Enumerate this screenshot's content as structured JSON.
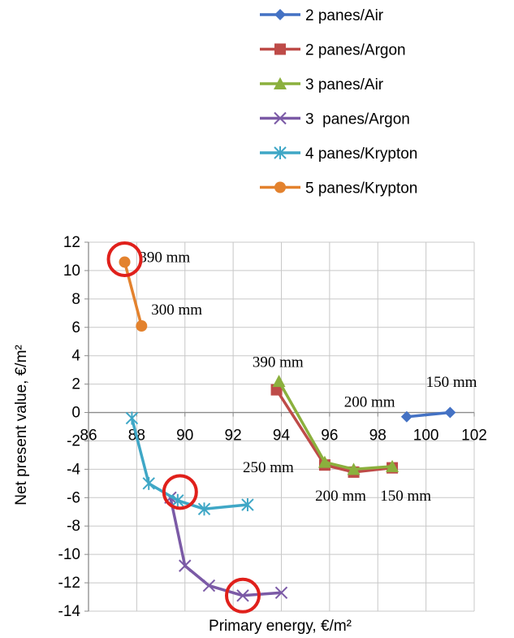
{
  "chart_data": {
    "type": "line",
    "xlabel": "Primary energy, €/m²",
    "ylabel": "Net present value, €/m²",
    "xlim": [
      86,
      102
    ],
    "ylim": [
      -14,
      12
    ],
    "x_ticks": [
      "86",
      "88",
      "90",
      "92",
      "94",
      "96",
      "98",
      "100",
      "102"
    ],
    "y_ticks": [
      "12",
      "10",
      "8",
      "6",
      "4",
      "2",
      "0",
      "-2",
      "-4",
      "-6",
      "-8",
      "-10",
      "-12",
      "-14"
    ],
    "grid": true,
    "legend_position": "top-right",
    "series": [
      {
        "name": "2 panes/Air",
        "color": "#4472c4",
        "marker": "diamond",
        "points": [
          [
            99.2,
            -0.3
          ],
          [
            101.0,
            0.0
          ]
        ]
      },
      {
        "name": "2 panes/Argon",
        "color": "#be4b48",
        "marker": "square",
        "points": [
          [
            93.8,
            1.6
          ],
          [
            95.8,
            -3.7
          ],
          [
            97.0,
            -4.2
          ],
          [
            98.6,
            -3.9
          ]
        ]
      },
      {
        "name": "3 panes/Air",
        "color": "#8bb03d",
        "marker": "triangle",
        "points": [
          [
            93.9,
            2.2
          ],
          [
            95.8,
            -3.5
          ],
          [
            97.0,
            -4.0
          ],
          [
            98.6,
            -3.8
          ]
        ]
      },
      {
        "name": "3  panes/Argon",
        "color": "#7b5aa6",
        "marker": "x",
        "points": [
          [
            89.4,
            -6.0
          ],
          [
            90.0,
            -10.8
          ],
          [
            91.0,
            -12.2
          ],
          [
            92.4,
            -12.9
          ],
          [
            94.0,
            -12.7
          ]
        ]
      },
      {
        "name": "4 panes/Krypton",
        "color": "#3fa7c6",
        "marker": "star",
        "points": [
          [
            87.8,
            -0.4
          ],
          [
            88.5,
            -5.0
          ],
          [
            89.7,
            -6.2
          ],
          [
            90.8,
            -6.8
          ],
          [
            92.6,
            -6.5
          ]
        ]
      },
      {
        "name": "5 panes/Krypton",
        "color": "#e3822e",
        "marker": "circle",
        "points": [
          [
            87.5,
            10.6
          ],
          [
            88.2,
            6.1
          ]
        ]
      }
    ],
    "annotations": [
      {
        "text": "390 mm",
        "x": 88.1,
        "y": 10.6
      },
      {
        "text": "300 mm",
        "x": 88.6,
        "y": 6.9
      },
      {
        "text": "390 mm",
        "x": 92.8,
        "y": 3.2
      },
      {
        "text": "200 mm",
        "x": 96.6,
        "y": 0.4
      },
      {
        "text": "150 mm",
        "x": 100.0,
        "y": 1.8
      },
      {
        "text": "250 mm",
        "x": 92.4,
        "y": -4.2
      },
      {
        "text": "200 mm",
        "x": 95.4,
        "y": -6.2
      },
      {
        "text": "150 mm",
        "x": 98.1,
        "y": -6.2
      }
    ],
    "highlight_circles": [
      {
        "x": 87.5,
        "y": 10.8
      },
      {
        "x": 89.8,
        "y": -5.6
      },
      {
        "x": 92.4,
        "y": -12.9
      }
    ],
    "highlight_color": "#e0201b"
  }
}
